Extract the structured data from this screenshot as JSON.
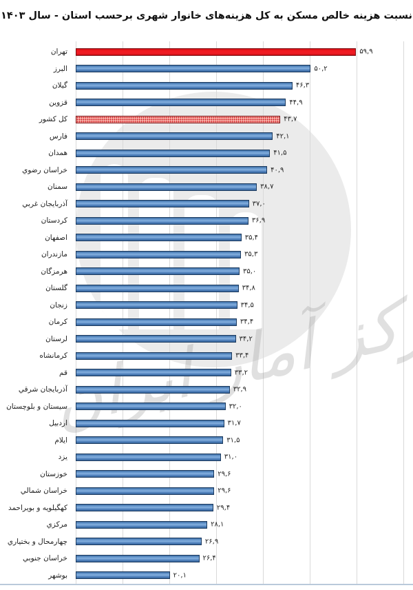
{
  "title": "نسبت هزینه خالص مسکن به کل هزینه‌های خانوار شهری برحسب استان - سال ۱۴۰۳",
  "watermark": {
    "text": "مرکز آمار ایران"
  },
  "chart_data": {
    "type": "bar",
    "orientation": "horizontal",
    "title": "نسبت هزینه خالص مسکن به کل هزینه‌های خانوار شهری برحسب استان - سال ۱۴۰۳",
    "xlabel": "",
    "ylabel": "",
    "xlim": [
      0,
      70
    ],
    "gridline_step": 10,
    "grid": true,
    "legend": false,
    "categories": [
      "تهران",
      "البرز",
      "گیلان",
      "قزوین",
      "کل کشور",
      "فارس",
      "همدان",
      "خراسان رضوي",
      "سمنان",
      "آذربایجان غربي",
      "کردستان",
      "اصفهان",
      "مازندران",
      "هرمزگان",
      "گلستان",
      "زنجان",
      "کرمان",
      "لرستان",
      "کرمانشاه",
      "قم",
      "آذربایجان شرقي",
      "سیستان و بلوچستان",
      "اردبیل",
      "ایلام",
      "یزد",
      "خوزستان",
      "خراسان شمالي",
      "کهگیلویه و بویراحمد",
      "مرکزي",
      "چهارمحال و بختیاري",
      "خراسان جنوبي",
      "بوشهر"
    ],
    "values": [
      59.9,
      50.2,
      46.3,
      44.9,
      43.7,
      42.1,
      41.5,
      40.9,
      38.7,
      37.0,
      36.9,
      35.4,
      35.3,
      35.0,
      34.8,
      34.5,
      34.4,
      34.2,
      33.4,
      33.2,
      32.9,
      32.0,
      31.7,
      31.5,
      31.0,
      29.6,
      29.6,
      29.4,
      28.1,
      26.9,
      26.4,
      20.1
    ],
    "value_labels": [
      "۵۹,۹",
      "۵۰,۲",
      "۴۶,۳",
      "۴۴,۹",
      "۴۳,۷",
      "۴۲,۱",
      "۴۱,۵",
      "۴۰,۹",
      "۳۸,۷",
      "۳۷,۰",
      "۳۶,۹",
      "۳۵,۴",
      "۳۵,۳",
      "۳۵,۰",
      "۳۴,۸",
      "۳۴,۵",
      "۳۴,۴",
      "۳۴,۲",
      "۳۳,۴",
      "۳۳,۲",
      "۳۲,۹",
      "۳۲,۰",
      "۳۱,۷",
      "۳۱,۵",
      "۳۱,۰",
      "۲۹,۶",
      "۲۹,۶",
      "۲۹,۴",
      "۲۸,۱",
      "۲۶,۹",
      "۲۶,۴",
      "۲۰,۱"
    ],
    "bar_styles": [
      "highlight",
      "normal",
      "normal",
      "normal",
      "total",
      "normal",
      "normal",
      "normal",
      "normal",
      "normal",
      "normal",
      "normal",
      "normal",
      "normal",
      "normal",
      "normal",
      "normal",
      "normal",
      "normal",
      "normal",
      "normal",
      "normal",
      "normal",
      "normal",
      "normal",
      "normal",
      "normal",
      "normal",
      "normal",
      "normal",
      "normal",
      "normal"
    ],
    "colors": {
      "bar_blue": "#4f81bd",
      "bar_blue_border": "#1c3a5e",
      "bar_red": "#ee1c24",
      "bar_red_border": "#7c0e12",
      "hatched_red_dot": "#cf1420",
      "hatched_red_bg": "#f7b0a6",
      "gridline": "#d9d9d9",
      "watermark_gray": "#ebebeb"
    }
  }
}
